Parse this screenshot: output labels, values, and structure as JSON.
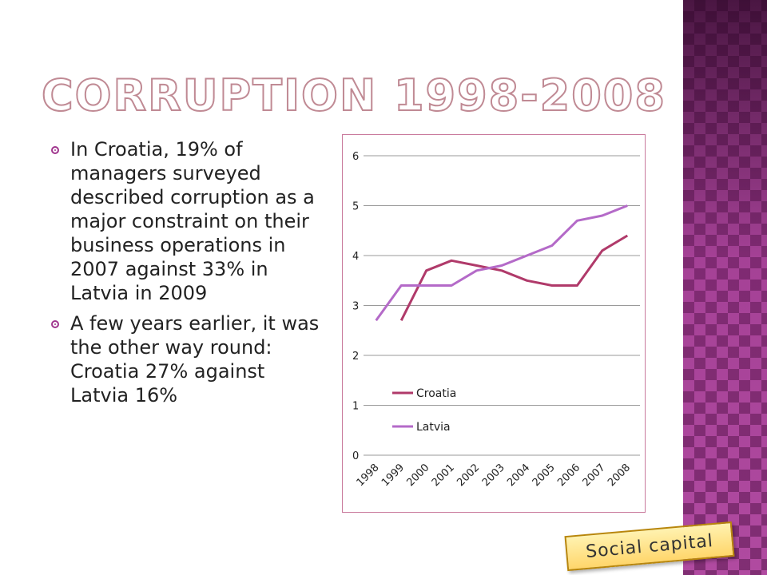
{
  "slide": {
    "title": "Corruption 1998-2008",
    "bullets": [
      "In Croatia, 19% of managers surveyed described corruption as a major constraint on their business operations in 2007 against 33% in Latvia in 2009",
      "A few years earlier, it was the other way round: Croatia 27% against Latvia 16%"
    ],
    "badge": "Social capital"
  },
  "colors": {
    "croatia": "#b03a6a",
    "latvia": "#b46ac8",
    "accent": "#a0368e"
  },
  "chart_data": {
    "type": "line",
    "categories": [
      "1998",
      "1999",
      "2000",
      "2001",
      "2002",
      "2003",
      "2004",
      "2005",
      "2006",
      "2007",
      "2008"
    ],
    "ylim": [
      0,
      6
    ],
    "yticks": [
      "0",
      "1",
      "2",
      "3",
      "4",
      "5",
      "6"
    ],
    "grid": true,
    "legend_position": "inside-lower-left",
    "series": [
      {
        "name": "Croatia",
        "color": "#b03a6a",
        "values": [
          null,
          2.7,
          3.7,
          3.9,
          3.8,
          3.7,
          3.5,
          3.4,
          3.4,
          4.1,
          4.4
        ]
      },
      {
        "name": "Latvia",
        "color": "#b46ac8",
        "values": [
          2.7,
          3.4,
          3.4,
          3.4,
          3.7,
          3.8,
          4.0,
          4.2,
          4.7,
          4.8,
          5.0
        ]
      }
    ]
  }
}
